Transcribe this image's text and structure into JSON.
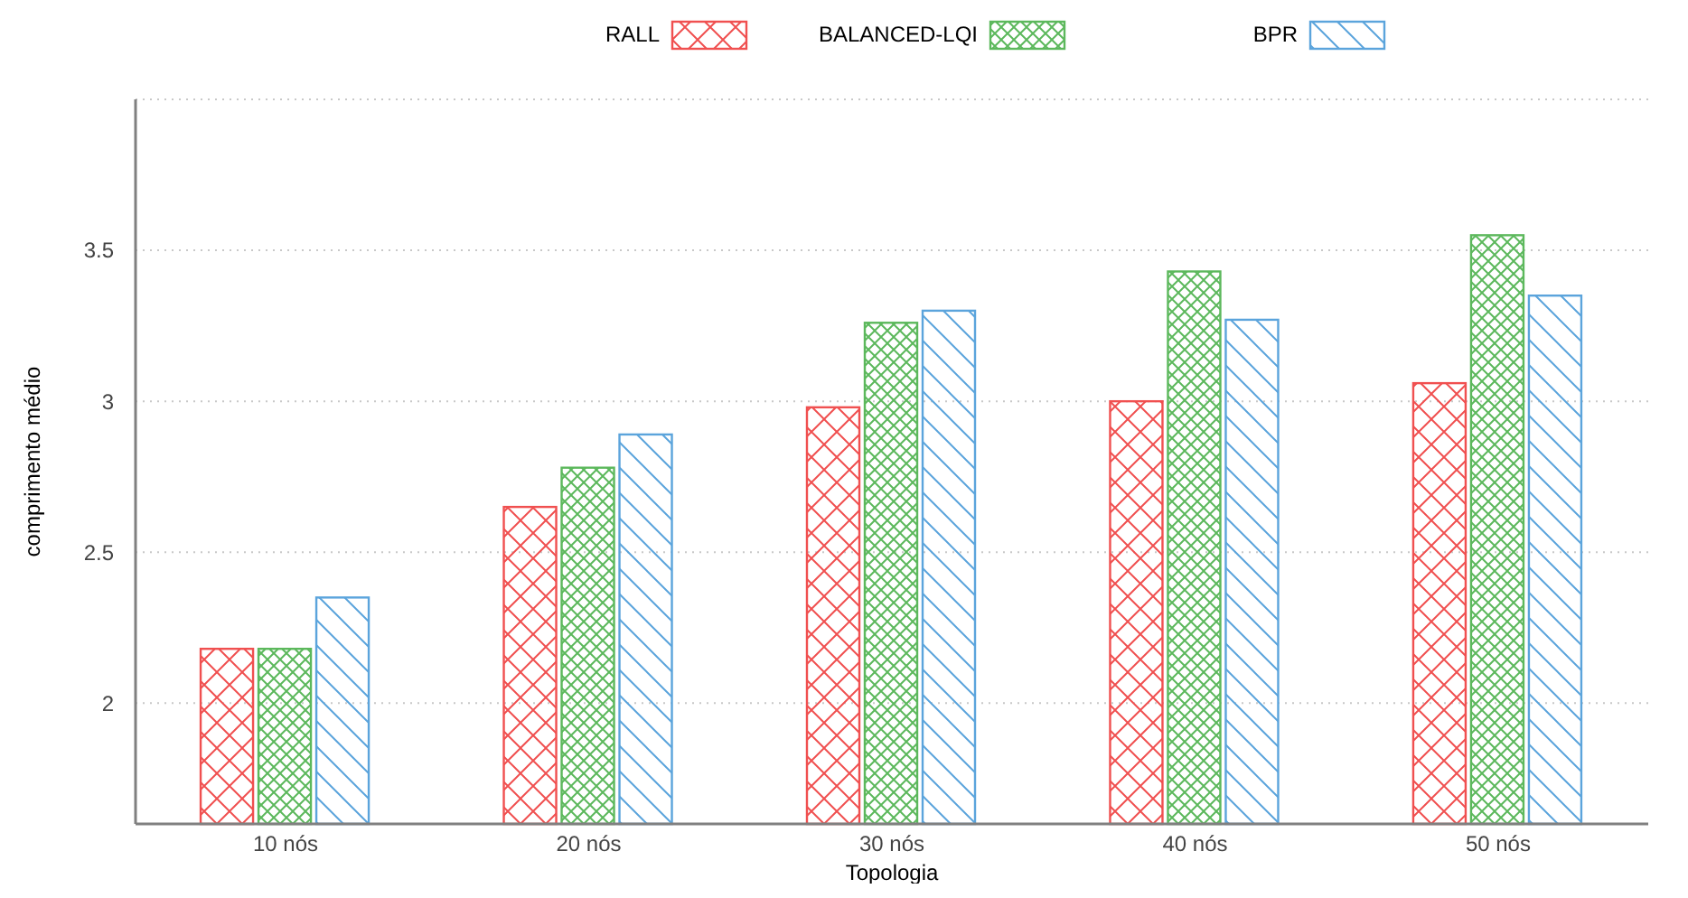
{
  "chart_data": {
    "type": "bar",
    "xlabel": "Topologia",
    "ylabel": "comprimento médio",
    "categories": [
      "10 nós",
      "20 nós",
      "30 nós",
      "40 nós",
      "50 nós"
    ],
    "series": [
      {
        "name": "RALL",
        "color": "#f05050",
        "values": [
          2.18,
          2.65,
          2.98,
          3.0,
          3.06
        ]
      },
      {
        "name": "BALANCED-LQI",
        "color": "#5cb85c",
        "values": [
          2.18,
          2.78,
          3.26,
          3.43,
          3.55
        ]
      },
      {
        "name": "BPR",
        "color": "#5ba4dc",
        "values": [
          2.35,
          2.89,
          3.3,
          3.27,
          3.35
        ]
      }
    ],
    "ylim": [
      1.6,
      4.0
    ],
    "yticks": [
      2,
      2.5,
      3,
      3.5,
      {
        "value": 4,
        "label": null
      }
    ],
    "grid": "y",
    "legend": "top"
  }
}
